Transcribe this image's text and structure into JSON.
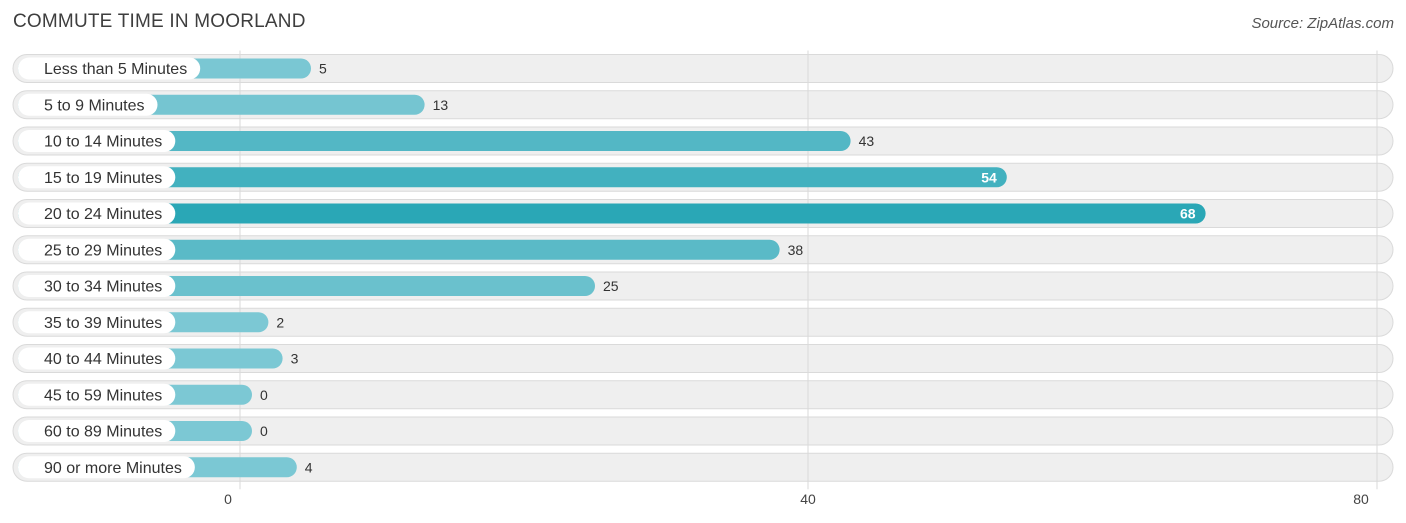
{
  "chart_data": {
    "type": "bar",
    "orientation": "horizontal",
    "title": "COMMUTE TIME IN MOORLAND",
    "source": "Source: ZipAtlas.com",
    "categories": [
      "Less than 5 Minutes",
      "5 to 9 Minutes",
      "10 to 14 Minutes",
      "15 to 19 Minutes",
      "20 to 24 Minutes",
      "25 to 29 Minutes",
      "30 to 34 Minutes",
      "35 to 39 Minutes",
      "40 to 44 Minutes",
      "45 to 59 Minutes",
      "60 to 89 Minutes",
      "90 or more Minutes"
    ],
    "values": [
      5,
      13,
      43,
      54,
      68,
      38,
      25,
      2,
      3,
      0,
      0,
      4
    ],
    "xlim": [
      0,
      80
    ],
    "ticks": [
      0,
      40,
      80
    ],
    "xlabel": "",
    "ylabel": "",
    "grid": true,
    "colors": {
      "bar_light": "#7cc8d4",
      "bar_dark": "#2aa7b6",
      "track": "#efefef"
    }
  }
}
